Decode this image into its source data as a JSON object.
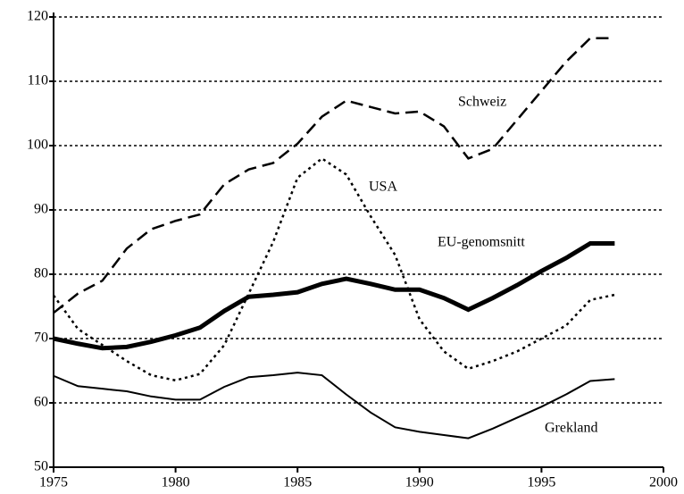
{
  "chart_data": {
    "type": "line",
    "x": [
      1975,
      1976,
      1977,
      1978,
      1979,
      1980,
      1981,
      1982,
      1983,
      1984,
      1985,
      1986,
      1987,
      1988,
      1989,
      1990,
      1991,
      1992,
      1993,
      1994,
      1995,
      1996,
      1997,
      1998
    ],
    "series": [
      {
        "name": "Schweiz",
        "color": "#000000",
        "style": "dashed",
        "width": 2.5,
        "values": [
          74,
          77,
          79,
          84,
          87,
          88.3,
          89.3,
          94,
          96.3,
          97.3,
          100.3,
          104.5,
          107,
          106,
          105,
          105.3,
          103,
          98,
          99.5,
          104,
          108.5,
          113,
          116.7,
          116.7
        ]
      },
      {
        "name": "USA",
        "color": "#000000",
        "style": "dotted",
        "width": 2.5,
        "values": [
          76.7,
          71.5,
          69,
          66.5,
          64.3,
          63.5,
          64.5,
          69,
          77,
          85,
          95,
          98,
          95.5,
          89,
          83,
          73,
          68,
          65.3,
          66.5,
          68,
          70,
          72,
          76,
          76.8
        ]
      },
      {
        "name": "EU-genomsnitt",
        "color": "#000000",
        "style": "solid",
        "width": 5,
        "values": [
          70,
          69.2,
          68.5,
          68.7,
          69.5,
          70.5,
          71.7,
          74.3,
          76.5,
          76.8,
          77.2,
          78.5,
          79.3,
          78.5,
          77.6,
          77.6,
          76.3,
          74.5,
          76.3,
          78.3,
          80.5,
          82.5,
          84.8,
          84.8
        ]
      },
      {
        "name": "Grekland",
        "color": "#000000",
        "style": "solid",
        "width": 2,
        "values": [
          64.2,
          62.6,
          62.2,
          61.8,
          61,
          60.5,
          60.5,
          62.5,
          64,
          64.3,
          64.7,
          64.3,
          61.3,
          58.5,
          56.2,
          55.5,
          55,
          54.5,
          56,
          57.7,
          59.4,
          61.3,
          63.4,
          63.7
        ]
      }
    ],
    "xlim": [
      1975,
      2000
    ],
    "xticks": [
      1975,
      1980,
      1985,
      1990,
      1995,
      2000
    ],
    "ylim": [
      50,
      120
    ],
    "yticks": [
      50,
      60,
      70,
      80,
      90,
      100,
      110,
      120
    ],
    "grid": true
  }
}
